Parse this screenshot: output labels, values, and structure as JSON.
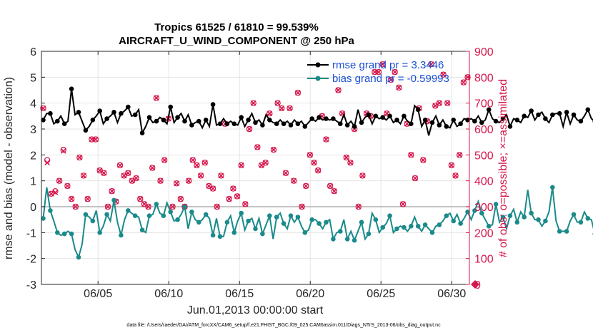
{
  "chart_data": {
    "type": "line",
    "title": "Tropics 61525 / 61810 = 99.539%",
    "subtitle": "AIRCRAFT_U_WIND_COMPONENT @ 250 hPa",
    "xlabel": "Jun.01,2013 00:00:00 start",
    "ylabel": "rmse and bias (model - observation)",
    "ylabel_right": "# of obs: o=possible; ×=assimilated",
    "footer": "data file: /Users/raeder/DAI/ATM_forcXX/CAM6_setup/f.e21.FHIST_BGC.f09_025.CAM6assim.011/Diags_NTrS_2013-06/obs_diag_output.nc",
    "xlim": [
      1.0,
      31.25
    ],
    "ylim": [
      -3,
      6
    ],
    "ylim_right": [
      0,
      900
    ],
    "x_ticks": [
      5,
      10,
      15,
      20,
      25,
      30
    ],
    "x_tick_labels": [
      "06/05",
      "06/10",
      "06/15",
      "06/20",
      "06/25",
      "06/30"
    ],
    "y_ticks": [
      -3,
      -2,
      -1,
      0,
      1,
      2,
      3,
      4,
      5,
      6
    ],
    "y_tick_labels": [
      "-3",
      "-2",
      "-1",
      "0",
      "1",
      "2",
      "3",
      "4",
      "5",
      "6"
    ],
    "y2_ticks": [
      0,
      100,
      200,
      300,
      400,
      500,
      600,
      700,
      800,
      900
    ],
    "y2_tick_labels": [
      "0",
      "100",
      "200",
      "300",
      "400",
      "500",
      "600",
      "700",
      "800",
      "900"
    ],
    "x_start": 1.125,
    "x_step": 0.25,
    "series": [
      {
        "name": "rmse grand pr = 3.3446",
        "color": "#000000",
        "values": [
          3.35,
          3.6,
          3.6,
          3.2,
          3.3,
          3.5,
          3.2,
          3.3,
          4.55,
          3.55,
          3.65,
          3.3,
          2.95,
          3.1,
          3.35,
          3.5,
          3.7,
          3.2,
          3.4,
          3.5,
          3.65,
          3.25,
          3.6,
          3.7,
          3.85,
          3.5,
          3.55,
          3.75,
          2.85,
          3.1,
          3.45,
          3.25,
          3.3,
          3.45,
          3.35,
          3.2,
          3.85,
          3.25,
          3.45,
          3.6,
          3.3,
          3.55,
          3.15,
          3.25,
          3.3,
          3.05,
          3.35,
          3.1,
          3.95,
          3.15,
          3.2,
          3.4,
          3.2,
          3.3,
          3.2,
          3.15,
          3.45,
          3.1,
          3.35,
          3.6,
          3.25,
          3.35,
          3.15,
          3.55,
          3.35,
          3.25,
          3.2,
          3.35,
          3.2,
          3.3,
          3.15,
          3.35,
          3.2,
          3.3,
          3.1,
          3.25,
          3.4,
          3.3,
          3.45,
          3.35,
          3.4,
          3.35,
          3.4,
          3.3,
          3.2,
          3.55,
          3.15,
          3.3,
          3.1,
          3.75,
          3.25,
          3.45,
          3.55,
          3.2,
          3.5,
          3.4,
          3.45,
          3.35,
          3.5,
          3.25,
          3.35,
          3.2,
          3.5,
          3.3,
          3.2,
          3.9,
          3.75,
          3.1,
          3.35,
          2.75,
          3.25,
          3.5,
          3.15,
          3.35,
          3.1,
          3.05,
          3.35,
          3.1,
          3.2,
          3.4,
          3.35,
          3.4,
          3.3,
          3.5,
          3.25,
          3.35,
          3.75,
          3.4,
          3.3,
          3.25,
          3.4,
          3.55,
          3.1,
          3.4,
          3.35,
          3.25,
          3.5,
          3.45,
          3.7,
          3.35,
          3.55,
          3.65,
          3.4,
          3.25,
          3.55,
          3.6,
          3.6,
          3.1,
          3.65,
          3.2,
          3.55,
          3.35,
          3.3,
          3.5,
          3.75,
          3.4,
          3.3,
          2.6,
          3.35,
          3.65,
          3.25,
          3.5,
          3.4,
          3.55,
          3.35,
          3.5,
          3.55,
          3.5,
          3.45,
          3.5,
          3.5,
          3.15,
          4.0,
          3.3,
          3.35
        ],
        "markers": [
          3.4,
          3.6,
          3.6,
          3.2,
          3.3,
          3.5,
          3.2,
          3.3,
          4.55,
          3.6,
          3.65,
          3.3,
          2.95,
          3.1,
          3.35,
          3.5,
          3.7,
          3.2,
          3.4,
          3.5,
          3.65,
          3.25,
          3.6,
          3.7,
          3.85,
          3.5,
          3.55,
          3.75,
          2.85,
          3.1,
          3.45,
          3.25,
          3.3,
          3.45,
          3.35,
          3.2,
          3.85,
          3.25,
          3.45,
          3.6,
          3.3,
          3.55,
          3.15,
          3.25,
          3.3,
          3.05,
          3.35,
          3.1,
          3.95,
          3.15,
          3.2,
          3.4,
          3.2,
          3.3,
          3.2,
          3.15,
          3.45,
          3.1,
          3.35,
          3.6,
          3.25,
          3.35,
          3.15,
          3.55,
          3.35,
          3.25,
          3.2,
          3.35,
          3.2,
          3.3,
          3.15,
          3.35,
          3.2,
          3.3,
          3.1,
          3.25,
          3.4,
          3.3,
          3.45,
          3.35,
          3.4,
          3.35,
          3.4,
          3.3,
          3.2,
          3.55,
          3.15,
          3.3,
          3.1,
          3.75,
          3.25,
          3.45,
          3.55,
          3.2,
          3.5,
          3.4,
          3.45,
          3.35,
          3.5,
          3.25,
          3.35,
          3.2,
          3.5,
          3.3,
          3.2,
          3.9,
          3.75,
          3.1,
          3.35,
          2.75,
          3.25,
          3.5,
          3.15,
          3.35,
          3.1,
          3.05,
          3.35,
          3.1,
          3.2,
          3.4,
          3.35,
          3.4,
          3.3,
          3.5,
          3.25,
          3.35,
          3.75,
          3.4,
          3.3,
          3.25,
          3.4,
          3.55,
          3.1,
          3.4,
          3.35,
          3.25,
          3.5,
          3.45,
          3.7,
          3.35,
          3.55,
          3.65,
          3.4,
          3.25,
          3.55,
          3.6,
          3.6,
          3.1,
          3.65,
          3.2,
          3.55,
          3.35,
          3.3,
          3.5,
          3.75,
          3.4,
          3.3,
          2.6,
          3.35,
          3.65,
          3.25,
          3.5,
          3.4,
          3.55,
          3.35,
          3.5,
          3.55,
          3.5,
          3.45,
          3.5,
          3.5,
          3.15,
          4.0,
          3.3,
          3.35
        ]
      },
      {
        "name": "bias grand pr = -0.59993",
        "color": "#1a8a8a",
        "values": [
          -0.45,
          0.75,
          -0.15,
          -0.55,
          -1.0,
          -1.1,
          -1.05,
          -0.95,
          -1.05,
          -1.65,
          -1.95,
          -1.45,
          -0.3,
          -0.4,
          -0.55,
          -0.15,
          -1.0,
          -0.75,
          -0.3,
          -0.55,
          0.25,
          -0.6,
          -1.1,
          -0.5,
          -0.15,
          -0.25,
          -0.35,
          -0.4,
          -0.9,
          -1.0,
          -0.35,
          -0.3,
          0.1,
          -0.25,
          -0.35,
          0.15,
          -0.2,
          -0.55,
          -0.5,
          -0.3,
          0.0,
          -0.85,
          -0.2,
          -0.5,
          -0.6,
          -0.5,
          -0.3,
          -0.45,
          -1.1,
          -0.45,
          -1.15,
          -1.15,
          -0.6,
          -0.35,
          -1.0,
          -0.55,
          -0.25,
          -0.9,
          -0.55,
          -0.45,
          -0.85,
          -0.45,
          -1.05,
          -0.7,
          -0.35,
          -1.25,
          -0.4,
          -0.25,
          -0.65,
          -0.85,
          -0.35,
          -0.6,
          -0.4,
          -0.75,
          -1.0,
          -0.9,
          -0.5,
          -0.5,
          -0.65,
          -0.85,
          -0.6,
          -0.5,
          -1.25,
          -1.0,
          -0.95,
          -0.5,
          -1.25,
          -0.95,
          -1.3,
          -0.95,
          -0.6,
          -1.25,
          -1.05,
          -0.25,
          -0.5,
          -1.0,
          -0.8,
          -0.65,
          -0.35,
          -1.0,
          -0.85,
          -0.75,
          -0.8,
          -0.95,
          -0.75,
          -0.4,
          -0.75,
          -0.95,
          -0.7,
          -0.85,
          -1.0,
          -0.75,
          -0.7,
          -0.55,
          -0.35,
          -0.25,
          -0.55,
          -0.3,
          -0.65,
          -0.45,
          -0.2,
          -0.5,
          -0.15,
          0.2,
          -0.25,
          -0.5,
          -0.75,
          -0.7,
          0.1,
          -0.6,
          -0.4,
          -0.85,
          -0.35,
          -0.1,
          -0.6,
          -0.2,
          -0.4,
          0.65,
          -0.25,
          -0.5,
          -0.5,
          -0.75,
          -0.55,
          -0.2,
          0.75,
          -0.55,
          -0.95,
          -0.95,
          -0.95,
          -0.55,
          -0.3,
          -0.6,
          -0.6,
          -0.2,
          -0.45,
          -0.5,
          -1.05,
          -1.05,
          -0.35,
          -0.45,
          -0.55,
          -0.3,
          -0.6,
          -0.45,
          -0.6,
          -0.75,
          -0.55,
          -0.3,
          0.05,
          -0.2,
          0.3,
          0.1,
          0.05,
          0.05,
          -1.2,
          -1.35,
          -1.35,
          -0.55,
          -0.75,
          -0.6,
          -0.5
        ]
      }
    ],
    "obs_possible": [
      680,
      480,
      350,
      360,
      400,
      520,
      380,
      330,
      300,
      490,
      420,
      330,
      560,
      560,
      440,
      430,
      300,
      360,
      320,
      460,
      420,
      430,
      400,
      410,
      330,
      310,
      300,
      450,
      720,
      400,
      480,
      640,
      300,
      390,
      330,
      300,
      400,
      480,
      460,
      420,
      470,
      380,
      370,
      300,
      420,
      620,
      330,
      370,
      340,
      460,
      310,
      600,
      700,
      530,
      460,
      470,
      660,
      520,
      700,
      680,
      430,
      680,
      400,
      740,
      300,
      380,
      500,
      470,
      440,
      650,
      560,
      380,
      360,
      750,
      660,
      490,
      470,
      600,
      300,
      420,
      660,
      650,
      820,
      820,
      850,
      660,
      790,
      820,
      760,
      310,
      620,
      500,
      410,
      680,
      480,
      630,
      850,
      690,
      700,
      810,
      700,
      460,
      420,
      500,
      780,
      800
    ],
    "obs_assimilated": [
      680,
      470,
      350,
      355,
      400,
      515,
      380,
      330,
      300,
      490,
      420,
      330,
      560,
      560,
      440,
      430,
      300,
      360,
      320,
      460,
      420,
      430,
      400,
      410,
      330,
      310,
      300,
      450,
      720,
      400,
      480,
      640,
      300,
      390,
      330,
      300,
      400,
      480,
      460,
      420,
      470,
      380,
      370,
      300,
      420,
      620,
      330,
      370,
      340,
      460,
      310,
      600,
      700,
      530,
      460,
      470,
      660,
      520,
      700,
      680,
      430,
      680,
      400,
      740,
      300,
      380,
      500,
      470,
      440,
      650,
      560,
      380,
      360,
      750,
      660,
      490,
      470,
      600,
      300,
      420,
      660,
      650,
      820,
      820,
      850,
      660,
      790,
      820,
      760,
      310,
      620,
      500,
      410,
      680,
      480,
      630,
      850,
      690,
      700,
      810,
      700,
      460,
      420,
      500,
      780,
      800
    ]
  }
}
